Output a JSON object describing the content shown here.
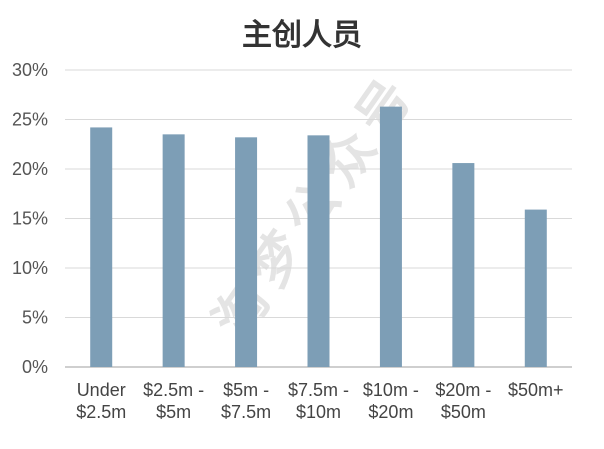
{
  "watermark": "淘梦公众号",
  "colors": {
    "bar": "#7d9eb6",
    "grid": "#d9d9d9",
    "axis": "#bfbfbf"
  },
  "chart_data": {
    "type": "bar",
    "title": "主创人员",
    "xlabel": "",
    "ylabel": "",
    "ylim": [
      0,
      30
    ],
    "yticks": [
      0,
      5,
      10,
      15,
      20,
      25,
      30
    ],
    "ytick_labels": [
      "0%",
      "5%",
      "10%",
      "15%",
      "20%",
      "25%",
      "30%"
    ],
    "value_unit": "%",
    "grid": true,
    "legend": "none",
    "categories": [
      [
        "Under",
        "$2.5m"
      ],
      [
        "$2.5m -",
        "$5m"
      ],
      [
        "$5m -",
        "$7.5m"
      ],
      [
        "$7.5m -",
        "$10m"
      ],
      [
        "$10m -",
        "$20m"
      ],
      [
        "$20m -",
        "$50m"
      ],
      [
        "$50m+"
      ]
    ],
    "values": [
      24.2,
      23.5,
      23.2,
      23.4,
      26.3,
      20.6,
      15.9
    ]
  }
}
